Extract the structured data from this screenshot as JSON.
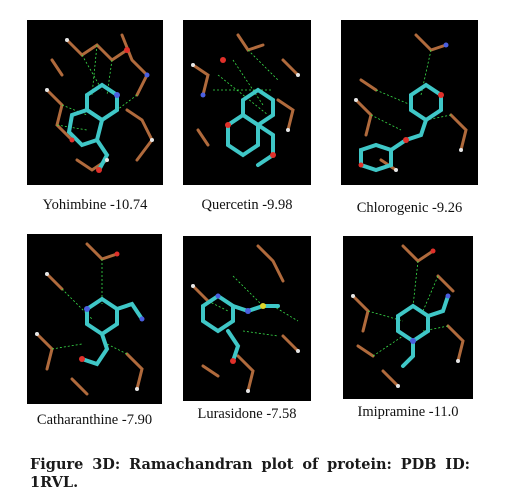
{
  "panels": [
    {
      "compound": "Yohimbine",
      "score": "-10.74",
      "label": "Yohimbine -10.74"
    },
    {
      "compound": "Quercetin",
      "score": "-9.98",
      "label": "Quercetin -9.98"
    },
    {
      "compound": "Chlorogenic",
      "score": "-9.26",
      "label": "Chlorogenic -9.26"
    },
    {
      "compound": "Catharanthine",
      "score": "-7.90",
      "label": "Catharanthine  -7.90"
    },
    {
      "compound": "Lurasidone",
      "score": "-7.58",
      "label": "Lurasidone  -7.58"
    },
    {
      "compound": "Imipramine",
      "score": "-11.0",
      "label": "Imipramine -11.0"
    }
  ],
  "figure": {
    "caption_line1": "Figure 3D: Ramachandran plot of protein: PDB ID:",
    "caption_line2": "1RVL."
  },
  "colors": {
    "background": "#000000",
    "ligand": "#3fc7c7",
    "residue": "#b06a3c",
    "hbond": "#39e04a",
    "oxygen": "#e0302a",
    "nitrogen": "#4a5fe0",
    "hydrogen": "#e6e6e6"
  }
}
